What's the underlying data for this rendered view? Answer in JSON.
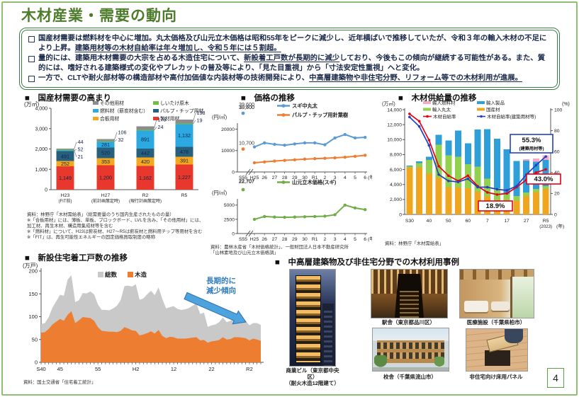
{
  "page": {
    "title": "木材産業・需要の動向",
    "page_number": "4"
  },
  "summary_box": {
    "bullets": [
      {
        "segments": [
          {
            "text": "国産材需要は燃料材を中心に増加。丸太価格及び山元立木価格は昭和55年をピークに減少し、近年横ばいで推移していたが、令和３年の輸入木材の不足により上昇。",
            "underline": false
          },
          {
            "text": "建築用材等の木材自給率は年々増加し、令和５年には５割超。",
            "underline": true
          }
        ]
      },
      {
        "segments": [
          {
            "text": "量的には、建築用木材需要の大宗を占める木造住宅について、",
            "underline": false
          },
          {
            "text": "新設着工戸数が長期的に減少",
            "underline": true
          },
          {
            "text": "しており、今後もこの傾向が継続する可能性がある。また、質的には、嗜好される建築様式の変化やプレカットの普及等により、「見た目重視」から「寸法安定性重視」へと変化。",
            "underline": false
          }
        ]
      },
      {
        "segments": [
          {
            "text": "一方で、CLTや耐火部材等の構造部材や高付加価値な内装材等の技術開発により、",
            "underline": false
          },
          {
            "text": "中高層建築物や非住宅分野、リフォーム等での木材利用が進展。",
            "underline": true
          }
        ]
      }
    ]
  },
  "sections": {
    "demand_title": "■　国産材需要の高まり",
    "price_title": "■　価格の推移",
    "supply_title": "■　木材供給量の推移",
    "housing_title": "■　新設住宅着工戸数の推移",
    "examples_title": "■　中高層建築物及び非住宅分野での木材利用事例"
  },
  "chart_data": [
    {
      "id": "demand",
      "type": "bar",
      "title": "国産材需要の高まり",
      "unit": "(万㎥)",
      "ylim": [
        0,
        4000
      ],
      "yticks": [
        0,
        1000,
        2000,
        3000,
        4000
      ],
      "categories": [
        [
          "H23",
          "(FIT前)"
        ],
        [
          "H27",
          "(前計画策定時)"
        ],
        [
          "R2",
          "(現行計画策定時)"
        ],
        [
          "R5",
          ""
        ]
      ],
      "series": [
        {
          "name": "製材用材",
          "color": "#e8382d",
          "values": [
            1149,
            1200,
            1162,
            1227
          ]
        },
        {
          "name": "合板用材",
          "color": "#f4a81d",
          "values": [
            252,
            353,
            420,
            391
          ]
        },
        {
          "name": "パルプ・チップ用材",
          "color": "#27607f",
          "values": [
            491,
            520,
            442,
            478
          ]
        },
        {
          "name": "燃料材（薪炭材含む）",
          "color": "#2ca9e1",
          "values": [
            52,
            281,
            891,
            1132
          ]
        },
        {
          "name": "しいたけ原木",
          "color": "#6fbf44",
          "values": [
            21,
            32,
            24,
            19
          ]
        },
        {
          "name": "その他用材",
          "color": "#8c8c8c",
          "values": [
            44,
            106,
            175,
            198
          ]
        }
      ],
      "legend_cols": [
        [
          5,
          3,
          1
        ],
        [
          4,
          2,
          0
        ]
      ],
      "callouts": [
        [
          {
            "s": 5,
            "v": "44"
          },
          {
            "s": 3,
            "v": "52"
          },
          {
            "s": 4,
            "v": "21"
          }
        ],
        [
          {
            "s": 5,
            "v": "106"
          },
          {
            "s": 4,
            "v": "32"
          }
        ],
        [
          {
            "s": 5,
            "v": "175"
          },
          {
            "s": 4,
            "v": "24"
          }
        ],
        [
          {
            "s": 5,
            "v": "198"
          },
          {
            "s": 4,
            "v": "19"
          }
        ]
      ],
      "source": "資料：林野庁「木材需給表」（総需要量のうち国内生産されたものの量）\n※「合板用材」には、薄板、単板、ブロックボード、LVLを含み、「その他用材」には、加工材、再生木材、構造用集成材等を含む\n※「燃料材」について、H23は薪炭材、H27～R5は薪炭材と燃料用チップ等用材を含む\n※「FIT」は、再生可能性エネルギーの固定価格買取制度の略称"
    },
    {
      "id": "price",
      "type": "line",
      "title": "価格の推移",
      "unit": "(円/㎥)",
      "x_labels": [
        "H25",
        "26",
        "27",
        "28",
        "29",
        "30",
        "R1",
        "2",
        "3",
        "4",
        "5",
        "6"
      ],
      "x_first": "S55",
      "x_suffix": "(年)",
      "top": {
        "yticks": [
          0,
          10000,
          20000
        ],
        "ymax": 21500,
        "outliers": [
          {
            "label": "39,600",
            "color": "#5b9bd5"
          },
          {
            "label": "10,700",
            "color": "#ed7d31"
          }
        ],
        "series": [
          {
            "name": "スギ中丸太",
            "color": "#5b9bd5",
            "values": [
              11700,
              13600,
              12900,
              12500,
              13100,
              13600,
              13600,
              12700,
              15900,
              17500,
              15900,
              16200
            ]
          },
          {
            "name": "パルプ・チップ用針葉樹",
            "color": "#ed7d31",
            "values": [
              4300,
              4700,
              5100,
              5400,
              5700,
              6000,
              6200,
              6400,
              6600,
              6900,
              7300,
              7800
            ]
          }
        ]
      },
      "bottom": {
        "yticks": [
          0,
          2500,
          5000
        ],
        "ymax": 5600,
        "outliers": [
          {
            "label": "22,707",
            "color": "#70ad47"
          }
        ],
        "series": [
          {
            "name": "山元立木価格(スギ)",
            "color": "#70ad47",
            "values": [
              2500,
              3000,
              2900,
              2850,
              2900,
              2950,
              3000,
              3050,
              3300,
              5000,
              4500,
              4200
            ]
          }
        ]
      },
      "source": "資料：農林水産省「木材価格統計」、一般財団法人日本不動産研究所\n「山林素地及び山元立木価格調」"
    },
    {
      "id": "supply",
      "type": "combo",
      "title": "木材供給量の推移",
      "unit_left": "(万㎥)",
      "unit_right": "(%)",
      "ylim_left": [
        0,
        14000
      ],
      "ylim_right": [
        0,
        100
      ],
      "x_labels": [
        "S30",
        "40",
        "50",
        "60",
        "7",
        "17",
        "27",
        "R5"
      ],
      "x_last_note": "(2023)",
      "x_suffix": "(年)",
      "bars": [
        {
          "name": "国産材",
          "color": "#f0a51f",
          "values": [
            6300,
            6300,
            5500,
            4900,
            3650,
            3600,
            3500,
            3050,
            2400,
            1900,
            1750,
            1850,
            2450,
            3000,
            3400
          ]
        },
        {
          "name": "輸入丸太",
          "color": "#92d14f",
          "values": [
            150,
            550,
            1800,
            4400,
            4250,
            4100,
            3200,
            3350,
            2400,
            1600,
            1000,
            600,
            500,
            400,
            400
          ]
        },
        {
          "name": "輸入製品",
          "color": "#2e9fd8",
          "values": [
            100,
            250,
            400,
            1350,
            2000,
            3500,
            2800,
            4950,
            6600,
            6600,
            5950,
            4700,
            4250,
            3650,
            3500
          ]
        },
        {
          "name": "輸入燃料材",
          "color": "#f7a8c4",
          "values": [
            0,
            0,
            0,
            0,
            0,
            0,
            0,
            0,
            0,
            0,
            0,
            0,
            200,
            400,
            600
          ]
        }
      ],
      "lines": [
        {
          "name": "木材自給率",
          "color": "#e60012",
          "values": [
            96,
            89,
            71,
            46,
            37,
            32,
            37,
            27,
            21,
            19,
            20,
            26,
            33,
            40,
            43
          ]
        },
        {
          "name": "木材自給率(建築用材等)",
          "color": "#2340c0",
          "values": [
            93,
            84,
            66,
            38,
            32,
            31,
            34,
            26,
            26,
            24,
            23,
            27,
            38,
            47,
            55.3
          ]
        }
      ],
      "annotations": [
        {
          "lines": [
            "55.3%",
            "(建築用材等)"
          ],
          "border": "#2340c0"
        },
        {
          "lines": [
            "43.0%"
          ],
          "border": "#e60012"
        },
        {
          "lines": [
            "18.9%"
          ],
          "border": "#e60012"
        }
      ],
      "source": "資料：林野庁「木材需給表」"
    },
    {
      "id": "housing",
      "type": "area",
      "title": "新設住宅着工戸数の推移",
      "unit": "(万戸)",
      "ylim": [
        0,
        200
      ],
      "yticks": [
        0,
        50,
        100,
        150,
        200
      ],
      "x_ticks": [
        {
          "i": 0,
          "label": "S40"
        },
        {
          "i": 5,
          "label": "45"
        },
        {
          "i": 15,
          "label": "55"
        },
        {
          "i": 25,
          "label": "H2"
        },
        {
          "i": 35,
          "label": "12"
        },
        {
          "i": 45,
          "label": "22"
        },
        {
          "i": 55,
          "label": "R2"
        }
      ],
      "series": [
        {
          "name": "総数",
          "color": "#c9c9c9",
          "values": [
            84,
            86,
            99,
            120,
            134,
            148,
            146,
            181,
            191,
            132,
            136,
            152,
            151,
            155,
            149,
            127,
            115,
            115,
            114,
            118,
            124,
            136,
            167,
            168,
            166,
            171,
            137,
            140,
            149,
            157,
            147,
            164,
            139,
            118,
            121,
            123,
            117,
            115,
            116,
            119,
            124,
            129,
            106,
            109,
            78,
            81,
            83,
            88,
            98,
            88,
            91,
            97,
            96,
            94,
            91,
            81,
            86,
            86,
            82
          ]
        },
        {
          "name": "木造",
          "color": "#ed7d31",
          "values": [
            65,
            66,
            73,
            83,
            89,
            95,
            91,
            104,
            112,
            86,
            92,
            99,
            98,
            97,
            91,
            77,
            69,
            68,
            67,
            67,
            66,
            69,
            77,
            74,
            70,
            69,
            59,
            61,
            64,
            68,
            63,
            71,
            58,
            53,
            56,
            55,
            52,
            52,
            52,
            53,
            54,
            55,
            48,
            49,
            43,
            46,
            47,
            49,
            55,
            50,
            51,
            55,
            55,
            54,
            53,
            48,
            52,
            50,
            47
          ]
        }
      ],
      "annotation": {
        "lines": [
          "長期的に",
          "減少傾向"
        ],
        "color": "#2d7bbd"
      },
      "source": "資料：国土交通省「住宅着工統計」"
    }
  ],
  "examples": {
    "items": [
      {
        "caption": "商業ビル（東京都中央区）\n（耐火木造12階建て）"
      },
      {
        "caption": "駅舎（東京都品川区）"
      },
      {
        "caption": "医療施設（千葉県柏市）"
      },
      {
        "caption": "校舎（千葉県流山市）"
      },
      {
        "caption": "非住宅向け床用パネル"
      }
    ]
  }
}
